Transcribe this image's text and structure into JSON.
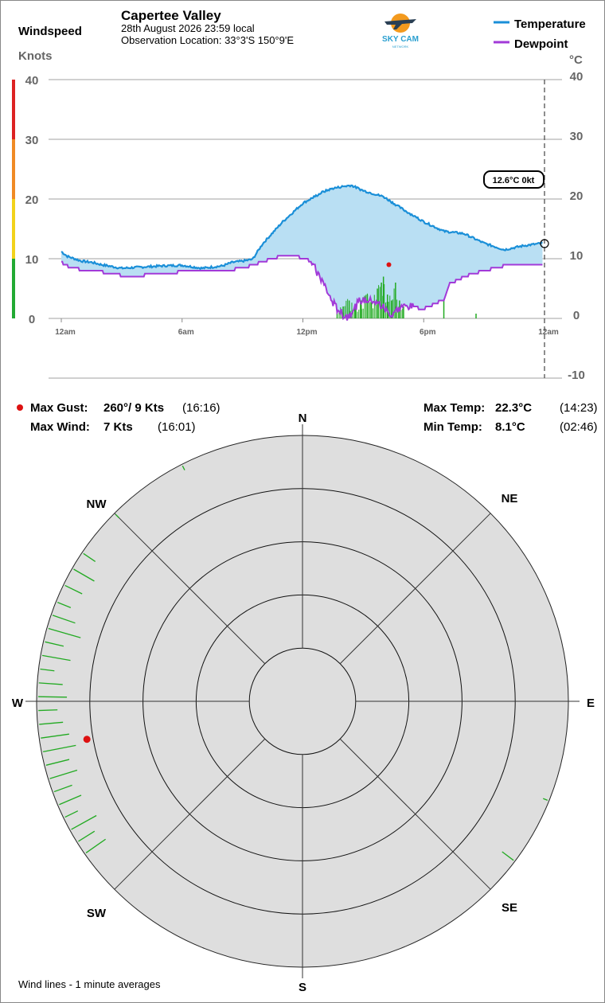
{
  "header": {
    "station": "Capertee Valley",
    "datetime": "28th August 2026  23:59 local",
    "location": "Observation Location: 33°3'S 150°9'E",
    "logo_text": "SKY CAM",
    "logo_subtext": "NETWORK"
  },
  "left_axis": {
    "title": "Windspeed",
    "unit": "Knots"
  },
  "right_axis": {
    "unit": "°C"
  },
  "legend": [
    {
      "label": "Temperature",
      "color": "#1a8fd8"
    },
    {
      "label": "Dewpoint",
      "color": "#a23ad8"
    }
  ],
  "current_badge": "12.6°C  0kt",
  "colors": {
    "temperature": "#1a8fd8",
    "dewpoint": "#a23ad8",
    "fill": "#b9dff3",
    "wind": "#22aa22",
    "gust_marker": "#dd1111",
    "rose_bg": "#dedede",
    "scale_green": "#22aa33",
    "scale_yellow": "#f2d21a",
    "scale_orange": "#f08a24",
    "scale_red": "#dd2222"
  },
  "chart_data": [
    {
      "type": "line",
      "x_unit": "hours since midnight (local)",
      "x_range": [
        0,
        24
      ],
      "x_ticks": [
        {
          "x": 0,
          "label": "12am"
        },
        {
          "x": 6,
          "label": "6am"
        },
        {
          "x": 12,
          "label": "12pm"
        },
        {
          "x": 18,
          "label": "6pm"
        },
        {
          "x": 24,
          "label": "12am"
        }
      ],
      "y_left": {
        "label": "Knots",
        "range": [
          0,
          40
        ],
        "ticks": [
          0,
          10,
          20,
          30,
          40
        ]
      },
      "y_right": {
        "label": "°C",
        "range": [
          -10,
          40
        ],
        "ticks": [
          -10,
          0,
          10,
          20,
          30,
          40
        ]
      },
      "grid": true,
      "legend_position": "top-right",
      "series": [
        {
          "name": "Temperature",
          "x": [
            0,
            0.3,
            1,
            1.5,
            2,
            3,
            4,
            5,
            6,
            7,
            8,
            8.5,
            9,
            9.5,
            10,
            11,
            12,
            13,
            13.5,
            14,
            14.4,
            15,
            16,
            17,
            18,
            19,
            20,
            21,
            22,
            23,
            23.9
          ],
          "y": [
            11.2,
            10.4,
            9.6,
            9.4,
            9.0,
            8.4,
            8.6,
            8.8,
            8.9,
            8.4,
            8.8,
            9.4,
            9.6,
            9.9,
            12.5,
            16.2,
            19.3,
            21.2,
            21.8,
            22.1,
            22.3,
            21.4,
            20.4,
            18.2,
            16.2,
            14.6,
            14.2,
            12.6,
            11.5,
            12.2,
            12.6
          ]
        },
        {
          "name": "Dewpoint",
          "x": [
            0,
            0.5,
            1,
            2,
            3,
            4,
            5,
            6,
            7,
            8,
            9,
            10,
            10.5,
            11,
            12,
            12.4,
            13,
            13.5,
            14,
            14.2,
            14.8,
            15.4,
            16,
            16.4,
            16.7,
            17,
            18,
            19,
            19.3,
            20,
            21,
            22,
            23,
            23.9
          ],
          "y": [
            9.4,
            8.4,
            8.2,
            7.8,
            7.2,
            7.2,
            7.6,
            7.8,
            7.9,
            8.0,
            8.4,
            9.5,
            10.0,
            10.5,
            10.2,
            9.5,
            6.0,
            2.5,
            0.5,
            0.2,
            2.8,
            3.2,
            1.8,
            0.5,
            1.5,
            2.2,
            1.6,
            3.2,
            5.8,
            7.0,
            8.0,
            8.8,
            9.0,
            9.2
          ]
        },
        {
          "name": "Wind 1-min average (kt)",
          "x": [
            13.7,
            14.0,
            14.3,
            14.6,
            14.9,
            15.2,
            15.4,
            15.7,
            15.9,
            16.0,
            16.2,
            16.4,
            16.6,
            16.8,
            17.0,
            19.0,
            20.6
          ],
          "y": [
            1.0,
            2.0,
            3.0,
            2.0,
            3.0,
            4.0,
            3.0,
            5.0,
            6.0,
            7.0,
            4.0,
            3.0,
            6.0,
            3.0,
            2.0,
            3.0,
            0.8
          ]
        }
      ],
      "max_gust_marker": {
        "x": 16.27,
        "y": 9
      }
    },
    {
      "type": "scatter",
      "title": "Wind lines - 1 minute averages",
      "projection": "polar wind rose",
      "radius_range": [
        0,
        50
      ],
      "ring_values": [
        10,
        20,
        30,
        40,
        50
      ],
      "directions": [
        "N",
        "NE",
        "E",
        "SE",
        "S",
        "SW",
        "W",
        "NW"
      ],
      "wind_lines": [
        {
          "dir": 235,
          "speed": 5
        },
        {
          "dir": 238,
          "speed": 4
        },
        {
          "dir": 241,
          "speed": 6
        },
        {
          "dir": 244,
          "speed": 3
        },
        {
          "dir": 247,
          "speed": 5
        },
        {
          "dir": 250,
          "speed": 4
        },
        {
          "dir": 253,
          "speed": 6
        },
        {
          "dir": 256,
          "speed": 5
        },
        {
          "dir": 259,
          "speed": 7
        },
        {
          "dir": 262,
          "speed": 6
        },
        {
          "dir": 265,
          "speed": 5
        },
        {
          "dir": 268,
          "speed": 4
        },
        {
          "dir": 271,
          "speed": 6
        },
        {
          "dir": 274,
          "speed": 5
        },
        {
          "dir": 277,
          "speed": 3
        },
        {
          "dir": 280,
          "speed": 6
        },
        {
          "dir": 283,
          "speed": 4
        },
        {
          "dir": 286,
          "speed": 7
        },
        {
          "dir": 289,
          "speed": 5
        },
        {
          "dir": 292,
          "speed": 3
        },
        {
          "dir": 296,
          "speed": 4
        },
        {
          "dir": 300,
          "speed": 5
        },
        {
          "dir": 304,
          "speed": 3
        },
        {
          "dir": 315,
          "speed": 1
        },
        {
          "dir": 333,
          "speed": 1
        },
        {
          "dir": 127,
          "speed": 3
        },
        {
          "dir": 112,
          "speed": 1
        }
      ],
      "max_gust": {
        "dir": 260,
        "speed": 9
      }
    }
  ],
  "stats": {
    "max_gust_label": "Max Gust:",
    "max_gust_value": "260°/ 9 Kts",
    "max_gust_time": "(16:16)",
    "max_wind_label": "Max Wind:",
    "max_wind_value": "7 Kts",
    "max_wind_time": "(16:01)",
    "max_temp_label": "Max Temp:",
    "max_temp_value": "22.3°C",
    "max_temp_time": "(14:23)",
    "min_temp_label": "Min Temp:",
    "min_temp_value": "8.1°C",
    "min_temp_time": "(02:46)"
  },
  "footer": "Wind lines - 1 minute averages"
}
